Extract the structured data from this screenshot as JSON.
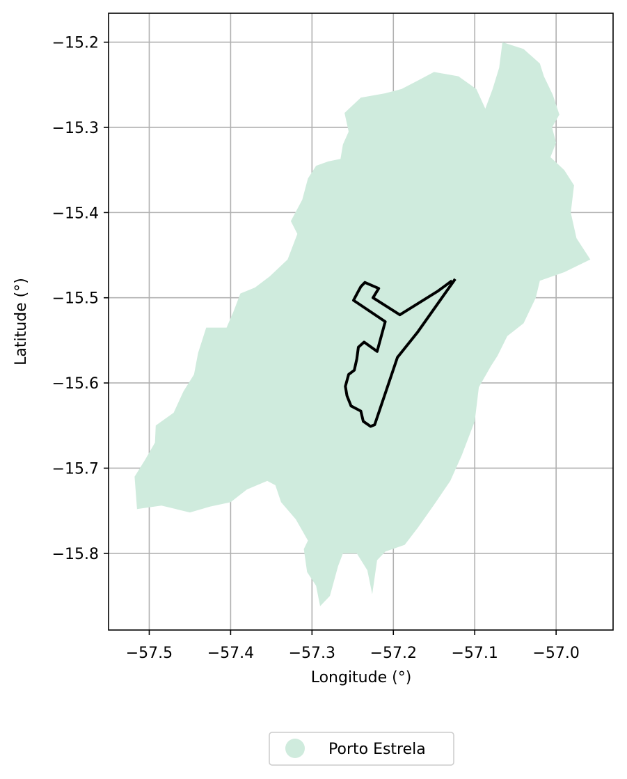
{
  "chart_data": {
    "type": "map",
    "xlabel": "Longitude (°)",
    "ylabel": "Latitude (°)",
    "xlim": [
      -57.55,
      -56.93
    ],
    "ylim": [
      -15.89,
      -15.166
    ],
    "xticks": [
      -57.5,
      -57.4,
      -57.3,
      -57.2,
      -57.1,
      -57.0
    ],
    "xtick_labels": [
      "−57.5",
      "−57.4",
      "−57.3",
      "−57.2",
      "−57.1",
      "−57.0"
    ],
    "yticks": [
      -15.2,
      -15.3,
      -15.4,
      -15.5,
      -15.6,
      -15.7,
      -15.8
    ],
    "ytick_labels": [
      "−15.2",
      "−15.3",
      "−15.4",
      "−15.5",
      "−15.6",
      "−15.7",
      "−15.8"
    ],
    "grid": true,
    "legend": {
      "position": "bottom-center",
      "entries": [
        {
          "label": "Porto Estrela",
          "color": "#cfebdd"
        }
      ]
    },
    "region": {
      "name": "Porto Estrela",
      "fill": "#cfebdd",
      "outline": [
        [
          -57.066,
          -15.2
        ],
        [
          -57.04,
          -15.208
        ],
        [
          -57.02,
          -15.225
        ],
        [
          -57.015,
          -15.24
        ],
        [
          -57.004,
          -15.262
        ],
        [
          -56.996,
          -15.285
        ],
        [
          -57.005,
          -15.3
        ],
        [
          -57.0,
          -15.318
        ],
        [
          -57.007,
          -15.335
        ],
        [
          -56.99,
          -15.35
        ],
        [
          -56.978,
          -15.368
        ],
        [
          -56.982,
          -15.4
        ],
        [
          -56.975,
          -15.43
        ],
        [
          -56.958,
          -15.455
        ],
        [
          -56.99,
          -15.47
        ],
        [
          -57.02,
          -15.48
        ],
        [
          -57.025,
          -15.5
        ],
        [
          -57.04,
          -15.53
        ],
        [
          -57.06,
          -15.545
        ],
        [
          -57.072,
          -15.568
        ],
        [
          -57.08,
          -15.58
        ],
        [
          -57.095,
          -15.605
        ],
        [
          -57.1,
          -15.645
        ],
        [
          -57.116,
          -15.685
        ],
        [
          -57.13,
          -15.715
        ],
        [
          -57.15,
          -15.743
        ],
        [
          -57.17,
          -15.77
        ],
        [
          -57.186,
          -15.79
        ],
        [
          -57.21,
          -15.798
        ],
        [
          -57.22,
          -15.808
        ],
        [
          -57.226,
          -15.848
        ],
        [
          -57.232,
          -15.82
        ],
        [
          -57.245,
          -15.8
        ],
        [
          -57.262,
          -15.8
        ],
        [
          -57.268,
          -15.815
        ],
        [
          -57.278,
          -15.85
        ],
        [
          -57.29,
          -15.862
        ],
        [
          -57.295,
          -15.838
        ],
        [
          -57.306,
          -15.822
        ],
        [
          -57.31,
          -15.795
        ],
        [
          -57.305,
          -15.785
        ],
        [
          -57.32,
          -15.76
        ],
        [
          -57.338,
          -15.74
        ],
        [
          -57.345,
          -15.72
        ],
        [
          -57.355,
          -15.715
        ],
        [
          -57.38,
          -15.725
        ],
        [
          -57.4,
          -15.74
        ],
        [
          -57.425,
          -15.745
        ],
        [
          -57.45,
          -15.752
        ],
        [
          -57.485,
          -15.744
        ],
        [
          -57.515,
          -15.748
        ],
        [
          -57.518,
          -15.71
        ],
        [
          -57.505,
          -15.69
        ],
        [
          -57.493,
          -15.67
        ],
        [
          -57.492,
          -15.65
        ],
        [
          -57.47,
          -15.635
        ],
        [
          -57.458,
          -15.61
        ],
        [
          -57.445,
          -15.59
        ],
        [
          -57.44,
          -15.565
        ],
        [
          -57.43,
          -15.535
        ],
        [
          -57.405,
          -15.535
        ],
        [
          -57.396,
          -15.515
        ],
        [
          -57.388,
          -15.495
        ],
        [
          -57.37,
          -15.488
        ],
        [
          -57.352,
          -15.475
        ],
        [
          -57.33,
          -15.455
        ],
        [
          -57.318,
          -15.425
        ],
        [
          -57.326,
          -15.41
        ],
        [
          -57.312,
          -15.385
        ],
        [
          -57.305,
          -15.36
        ],
        [
          -57.295,
          -15.345
        ],
        [
          -57.28,
          -15.34
        ],
        [
          -57.265,
          -15.337
        ],
        [
          -57.262,
          -15.32
        ],
        [
          -57.255,
          -15.305
        ],
        [
          -57.26,
          -15.283
        ],
        [
          -57.24,
          -15.265
        ],
        [
          -57.21,
          -15.26
        ],
        [
          -57.19,
          -15.255
        ],
        [
          -57.17,
          -15.245
        ],
        [
          -57.15,
          -15.235
        ],
        [
          -57.12,
          -15.24
        ],
        [
          -57.098,
          -15.255
        ],
        [
          -57.087,
          -15.278
        ],
        [
          -57.078,
          -15.255
        ],
        [
          -57.07,
          -15.23
        ]
      ]
    },
    "boundary": {
      "stroke": "#000000",
      "points": [
        [
          -57.128,
          -15.48
        ],
        [
          -57.145,
          -15.492
        ],
        [
          -57.192,
          -15.52
        ],
        [
          -57.225,
          -15.5
        ],
        [
          -57.218,
          -15.489
        ],
        [
          -57.235,
          -15.482
        ],
        [
          -57.24,
          -15.487
        ],
        [
          -57.244,
          -15.494
        ],
        [
          -57.249,
          -15.503
        ],
        [
          -57.21,
          -15.528
        ],
        [
          -57.22,
          -15.563
        ],
        [
          -57.236,
          -15.552
        ],
        [
          -57.243,
          -15.558
        ],
        [
          -57.245,
          -15.572
        ],
        [
          -57.248,
          -15.585
        ],
        [
          -57.255,
          -15.59
        ],
        [
          -57.259,
          -15.604
        ],
        [
          -57.257,
          -15.615
        ],
        [
          -57.252,
          -15.627
        ],
        [
          -57.24,
          -15.633
        ],
        [
          -57.237,
          -15.645
        ],
        [
          -57.228,
          -15.651
        ],
        [
          -57.223,
          -15.649
        ],
        [
          -57.195,
          -15.57
        ],
        [
          -57.17,
          -15.54
        ],
        [
          -57.124,
          -15.478
        ]
      ]
    }
  }
}
